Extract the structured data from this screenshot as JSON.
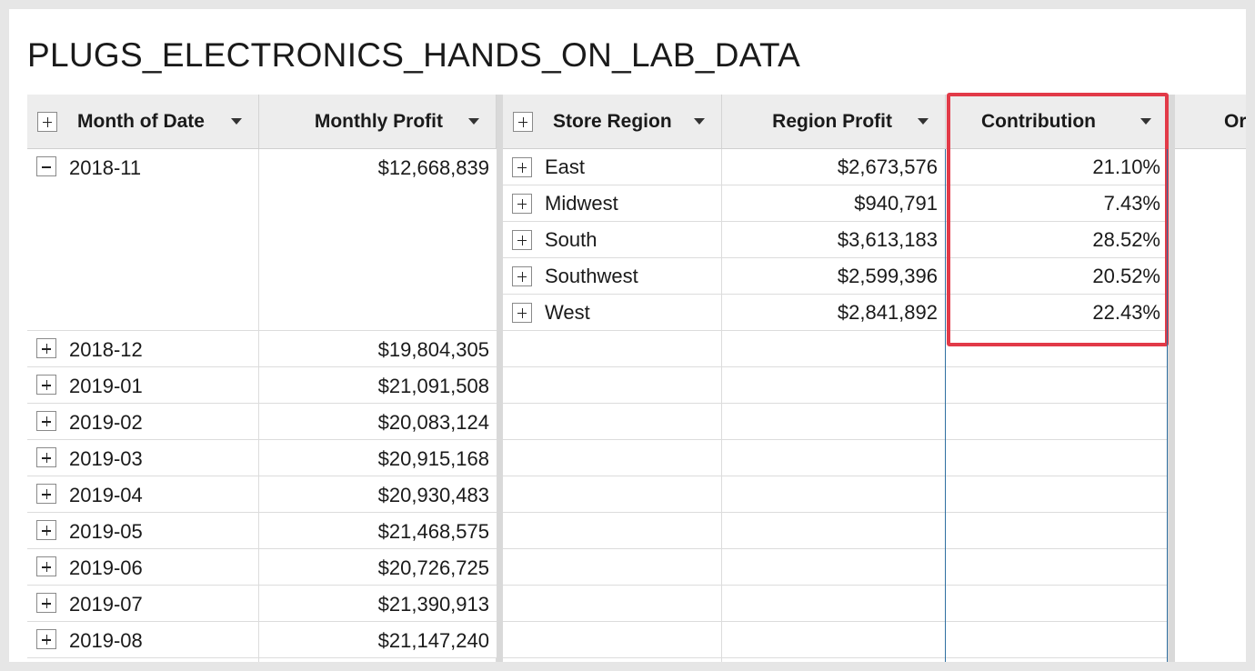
{
  "title": "PLUGS_ELECTRONICS_HANDS_ON_LAB_DATA",
  "columns": {
    "month": "Month of Date",
    "monthly_profit": "Monthly Profit",
    "store_region": "Store Region",
    "region_profit": "Region Profit",
    "contribution": "Contribution",
    "partial": "Or"
  },
  "rows": [
    {
      "month": "2018-11",
      "profit": "$12,668,839",
      "expanded": true
    },
    {
      "month": "2018-12",
      "profit": "$19,804,305"
    },
    {
      "month": "2019-01",
      "profit": "$21,091,508"
    },
    {
      "month": "2019-02",
      "profit": "$20,083,124"
    },
    {
      "month": "2019-03",
      "profit": "$20,915,168"
    },
    {
      "month": "2019-04",
      "profit": "$20,930,483"
    },
    {
      "month": "2019-05",
      "profit": "$21,468,575"
    },
    {
      "month": "2019-06",
      "profit": "$20,726,725"
    },
    {
      "month": "2019-07",
      "profit": "$21,390,913"
    },
    {
      "month": "2019-08",
      "profit": "$21,147,240"
    }
  ],
  "regions": [
    {
      "name": "East",
      "profit": "$2,673,576",
      "contribution": "21.10%"
    },
    {
      "name": "Midwest",
      "profit": "$940,791",
      "contribution": "7.43%"
    },
    {
      "name": "South",
      "profit": "$3,613,183",
      "contribution": "28.52%"
    },
    {
      "name": "Southwest",
      "profit": "$2,599,396",
      "contribution": "20.52%"
    },
    {
      "name": "West",
      "profit": "$2,841,892",
      "contribution": "22.43%"
    }
  ],
  "colors": {
    "highlight": "#e23a48",
    "selection": "#2f6fa0",
    "header_bg": "#ededed"
  }
}
